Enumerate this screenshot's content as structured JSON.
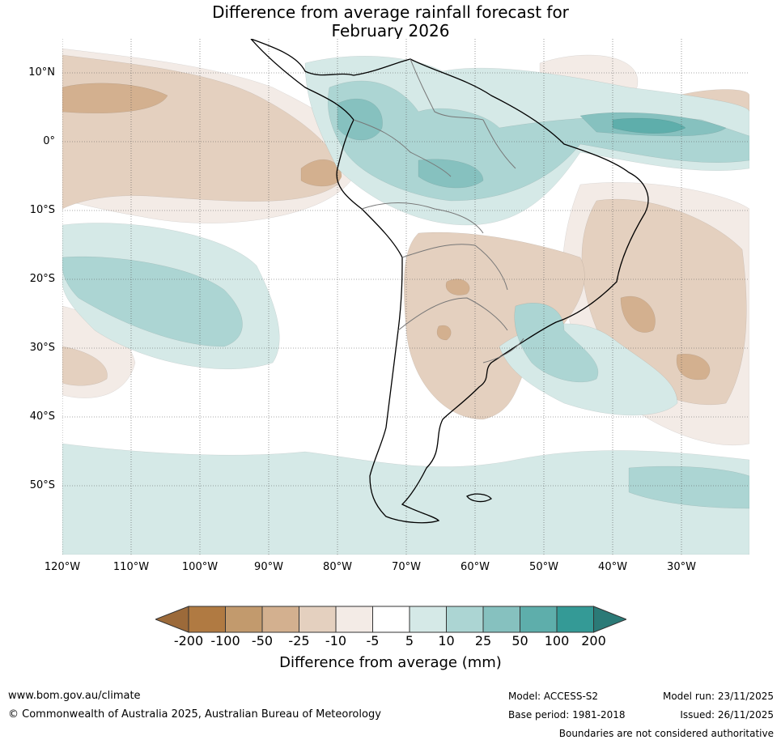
{
  "title": {
    "line1": "Difference from average rainfall forecast for",
    "line2": "February 2026"
  },
  "map": {
    "latitude_labels": [
      "10°N",
      "0°",
      "10°S",
      "20°S",
      "30°S",
      "40°S",
      "50°S"
    ],
    "longitude_labels": [
      "120°W",
      "110°W",
      "100°W",
      "90°W",
      "80°W",
      "70°W",
      "60°W",
      "50°W",
      "40°W",
      "30°W"
    ],
    "colors": {
      "wet_light": "#d5e9e7",
      "wet_mid": "#acd5d3",
      "wet_strong": "#86c1bf",
      "wet_heavy": "#5eaeab",
      "dry_light": "#f3ebe6",
      "dry_mid": "#e4d0bf",
      "dry_strong": "#d3b08f",
      "dry_heavy": "#c29a6d"
    }
  },
  "legend": {
    "tick_labels": [
      "-200",
      "-100",
      "-50",
      "-25",
      "-10",
      "-5",
      "5",
      "10",
      "25",
      "50",
      "100",
      "200"
    ],
    "bin_colors": [
      "#9c6a3a",
      "#b07a42",
      "#c29a6d",
      "#d3b08f",
      "#e4d0bf",
      "#f3ebe6",
      "#ffffff",
      "#d5e9e7",
      "#acd5d3",
      "#86c1bf",
      "#5eaeab",
      "#349a96",
      "#2b7a77"
    ],
    "title": "Difference from average (mm)"
  },
  "footer": {
    "url": "www.bom.gov.au/climate",
    "copyright": "© Commonwealth of Australia 2025, Australian Bureau of Meteorology",
    "model": "Model: ACCESS-S2",
    "base_period": "Base period: 1981-2018",
    "model_run": "Model run: 23/11/2025",
    "issued": "Issued: 26/11/2025",
    "disclaimer": "Boundaries are not considered authoritative"
  }
}
